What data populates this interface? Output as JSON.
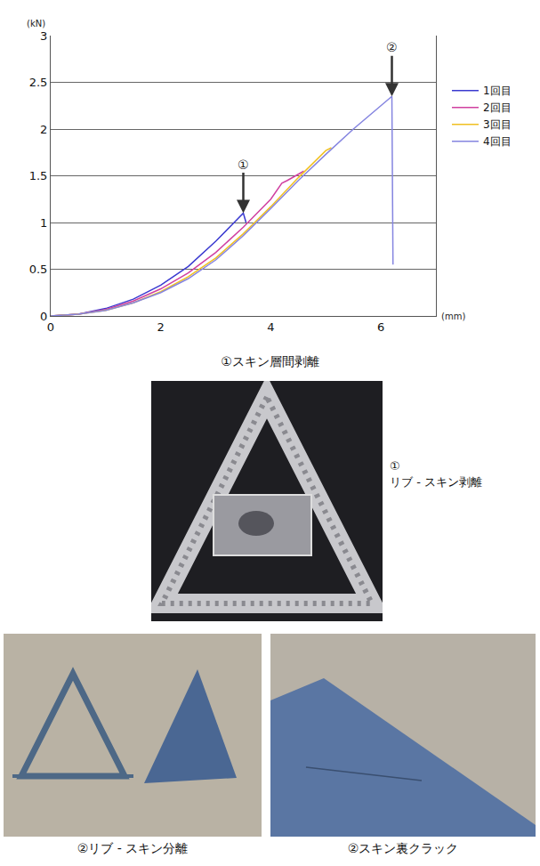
{
  "chart_data": {
    "type": "line",
    "y_label": "(kN)",
    "x_label": "(mm)",
    "xlim": [
      0,
      7
    ],
    "xticks": [
      0,
      2,
      4,
      6
    ],
    "ylim": [
      0,
      3
    ],
    "yticks": [
      0,
      0.5,
      1,
      1.5,
      2,
      2.5,
      3
    ],
    "grid": true,
    "legend": "right",
    "series": [
      {
        "name": "1回目",
        "color": "#3a3ad0",
        "x": [
          0,
          0.5,
          1,
          1.5,
          2,
          2.5,
          3,
          3.3,
          3.5,
          3.55
        ],
        "values": [
          0,
          0.02,
          0.08,
          0.18,
          0.33,
          0.53,
          0.8,
          0.98,
          1.1,
          1.0
        ]
      },
      {
        "name": "2回目",
        "color": "#d040a0",
        "x": [
          0,
          0.5,
          1,
          1.5,
          2,
          2.5,
          3,
          3.5,
          4,
          4.2,
          4.3,
          4.6
        ],
        "values": [
          0,
          0.02,
          0.07,
          0.16,
          0.29,
          0.46,
          0.68,
          0.95,
          1.25,
          1.42,
          1.45,
          1.55
        ]
      },
      {
        "name": "3回目",
        "color": "#f0c020",
        "x": [
          0,
          0.5,
          1,
          1.5,
          2,
          2.5,
          3,
          3.5,
          4,
          4.5,
          5,
          5.1
        ],
        "values": [
          0,
          0.02,
          0.06,
          0.14,
          0.26,
          0.42,
          0.62,
          0.88,
          1.17,
          1.48,
          1.77,
          1.8
        ]
      },
      {
        "name": "4回目",
        "color": "#8585e0",
        "x": [
          0,
          0.5,
          1,
          1.5,
          2,
          2.5,
          3,
          3.5,
          4,
          4.5,
          5,
          5.5,
          6,
          6.2,
          6.22
        ],
        "values": [
          0,
          0.02,
          0.06,
          0.14,
          0.25,
          0.4,
          0.6,
          0.86,
          1.15,
          1.45,
          1.73,
          2.0,
          2.25,
          2.35,
          0.55
        ]
      }
    ],
    "annotations": [
      {
        "text": "①",
        "x": 3.5,
        "y": 1.1
      },
      {
        "text": "②",
        "x": 6.2,
        "y": 2.35
      }
    ],
    "caption": "①スキン層間剥離"
  },
  "photos": [
    {
      "label": "①",
      "text": "リブ - スキン剥離"
    },
    {
      "caption": "②リブ - スキン分離"
    },
    {
      "caption": "②スキン裏クラック"
    }
  ]
}
